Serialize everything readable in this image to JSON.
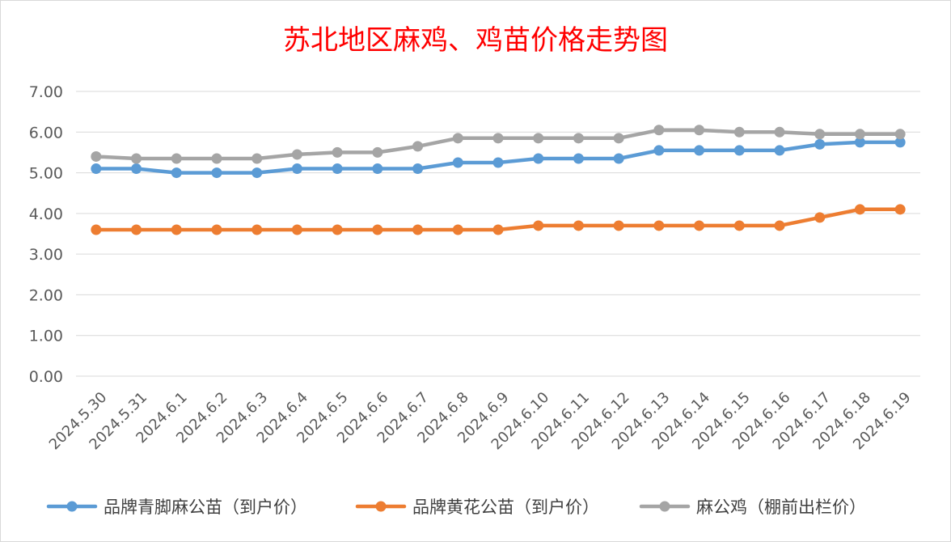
{
  "chart_data": {
    "type": "line",
    "title": "苏北地区麻鸡、鸡苗价格走势图",
    "title_color": "#ff0000",
    "xlabel": "",
    "ylabel": "",
    "ylim": [
      0,
      7
    ],
    "yticks": [
      "0.00",
      "1.00",
      "2.00",
      "3.00",
      "4.00",
      "5.00",
      "6.00",
      "7.00"
    ],
    "grid": true,
    "legend_position": "bottom",
    "categories": [
      "2024.5.30",
      "2024.5.31",
      "2024.6.1",
      "2024.6.2",
      "2024.6.3",
      "2024.6.4",
      "2024.6.5",
      "2024.6.6",
      "2024.6.7",
      "2024.6.8",
      "2024.6.9",
      "2024.6.10",
      "2024.6.11",
      "2024.6.12",
      "2024.6.13",
      "2024.6.14",
      "2024.6.15",
      "2024.6.16",
      "2024.6.17",
      "2024.6.18",
      "2024.6.19"
    ],
    "series": [
      {
        "name": "品牌青脚麻公苗（到户价）",
        "color": "#5b9bd5",
        "values": [
          5.1,
          5.1,
          5.0,
          5.0,
          5.0,
          5.1,
          5.1,
          5.1,
          5.1,
          5.25,
          5.25,
          5.35,
          5.35,
          5.35,
          5.55,
          5.55,
          5.55,
          5.55,
          5.7,
          5.75,
          5.75
        ]
      },
      {
        "name": "品牌黄花公苗（到户价）",
        "color": "#ed7d31",
        "values": [
          3.6,
          3.6,
          3.6,
          3.6,
          3.6,
          3.6,
          3.6,
          3.6,
          3.6,
          3.6,
          3.6,
          3.7,
          3.7,
          3.7,
          3.7,
          3.7,
          3.7,
          3.7,
          3.9,
          4.1,
          4.1
        ]
      },
      {
        "name": "麻公鸡（棚前出栏价）",
        "color": "#a5a5a5",
        "values": [
          5.4,
          5.35,
          5.35,
          5.35,
          5.35,
          5.45,
          5.5,
          5.5,
          5.65,
          5.85,
          5.85,
          5.85,
          5.85,
          5.85,
          6.05,
          6.05,
          6.0,
          6.0,
          5.95,
          5.95,
          5.95
        ]
      }
    ]
  }
}
